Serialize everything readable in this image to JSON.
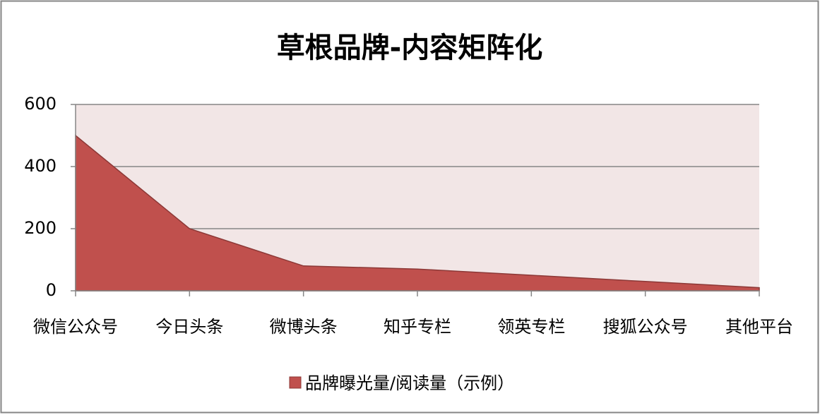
{
  "chart_data": {
    "type": "area",
    "title": "草根品牌-内容矩阵化",
    "categories": [
      "微信公众号",
      "今日头条",
      "微博头条",
      "知乎专栏",
      "领英专栏",
      "搜狐公众号",
      "其他平台"
    ],
    "series": [
      {
        "name": "品牌曝光量/阅读量（示例）",
        "color": "#c0504d",
        "values": [
          500,
          200,
          80,
          70,
          50,
          30,
          10
        ]
      }
    ],
    "ylim": [
      0,
      600
    ],
    "yticks": [
      0,
      200,
      400,
      600
    ],
    "grid": true,
    "legend": "bottom"
  }
}
